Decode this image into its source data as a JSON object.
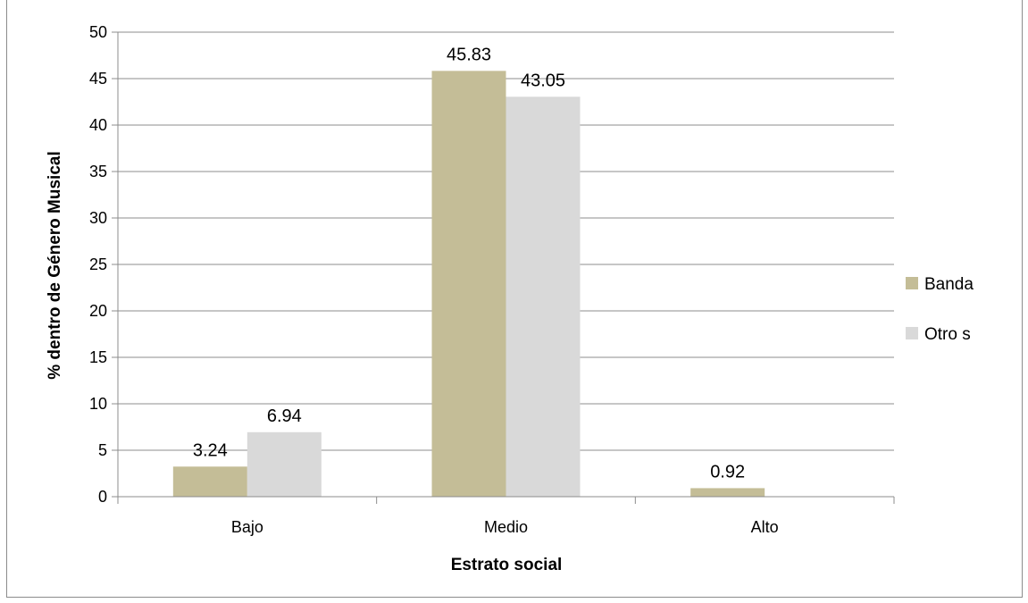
{
  "chart_data": {
    "type": "bar",
    "title": "",
    "xlabel": "Estrato social",
    "ylabel": "% dentro de Género Musical",
    "categories": [
      "Bajo",
      "Medio",
      "Alto"
    ],
    "ylim": [
      0,
      50
    ],
    "yticks": [
      0,
      5,
      10,
      15,
      20,
      25,
      30,
      35,
      40,
      45,
      50
    ],
    "grid": "horizontal",
    "legend_position": "right",
    "series": [
      {
        "name": "Banda",
        "color": "#c4bd97",
        "values": [
          3.24,
          45.83,
          0.92
        ],
        "labels": [
          "3.24",
          "45.83",
          "0.92"
        ]
      },
      {
        "name": "Otro s",
        "color": "#d9d9d9",
        "values": [
          6.94,
          43.05,
          null
        ],
        "labels": [
          "6.94",
          "43.05",
          ""
        ]
      }
    ]
  }
}
